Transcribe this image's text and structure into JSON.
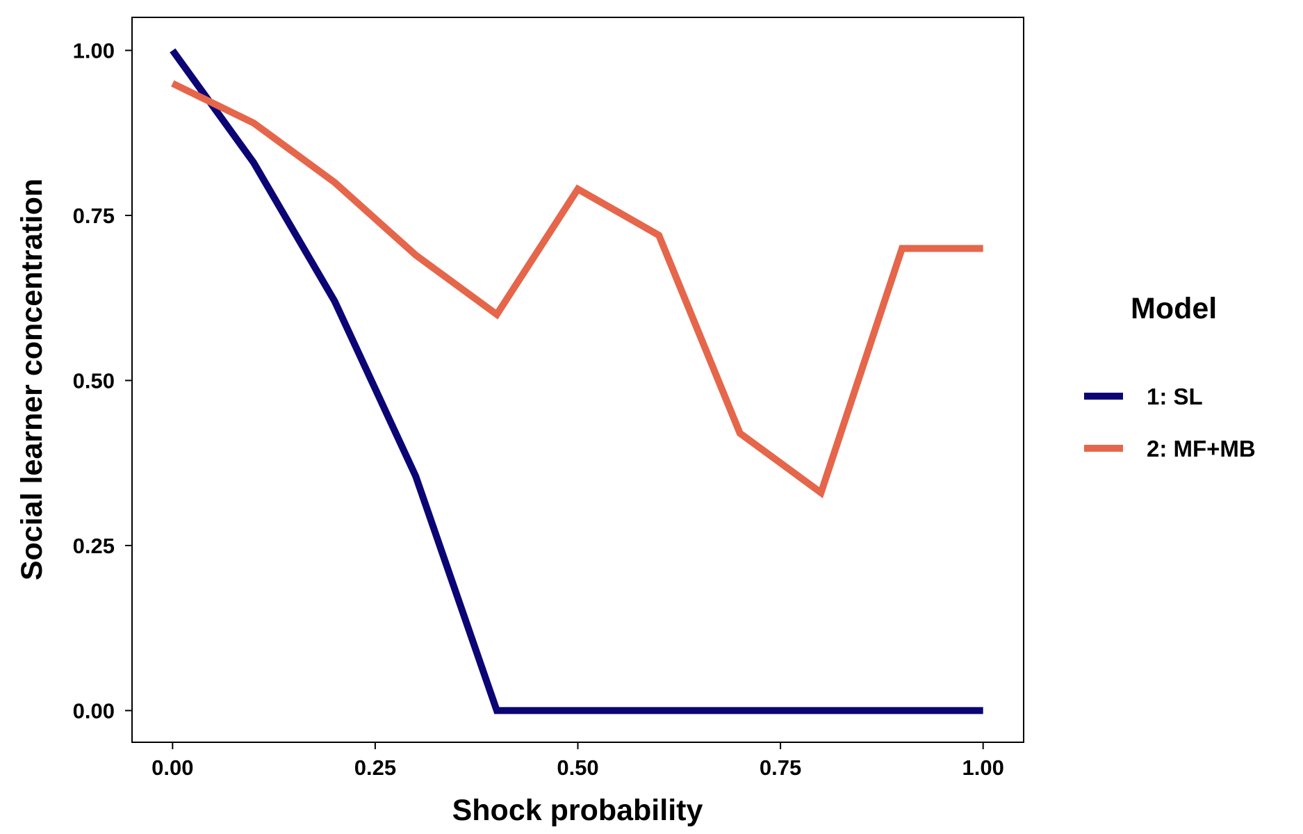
{
  "chart_data": {
    "type": "line",
    "xlabel": "Shock probability",
    "ylabel": "Social learner concentration",
    "xlim": [
      -0.05,
      1.05
    ],
    "ylim": [
      -0.048,
      1.05
    ],
    "x_ticks": [
      0.0,
      0.25,
      0.5,
      0.75,
      1.0
    ],
    "x_tick_labels": [
      "0.00",
      "0.25",
      "0.50",
      "0.75",
      "1.00"
    ],
    "y_ticks": [
      0.0,
      0.25,
      0.5,
      0.75,
      1.0
    ],
    "y_tick_labels": [
      "0.00",
      "0.25",
      "0.50",
      "0.75",
      "1.00"
    ],
    "grid": false,
    "legend": {
      "title": "Model",
      "position": "right"
    },
    "x": [
      0.0,
      0.1,
      0.2,
      0.3,
      0.4,
      0.5,
      0.6,
      0.7,
      0.8,
      0.9,
      1.0
    ],
    "series": [
      {
        "name": "1: SL",
        "color": "#0b0475",
        "values": [
          1.0,
          0.83,
          0.62,
          0.355,
          0.0,
          0.0,
          0.0,
          0.0,
          0.0,
          0.0,
          0.0
        ]
      },
      {
        "name": "2: MF+MB",
        "color": "#e5664a",
        "values": [
          0.95,
          0.89,
          0.8,
          0.69,
          0.6,
          0.79,
          0.72,
          0.42,
          0.33,
          0.7,
          0.7
        ]
      }
    ]
  }
}
